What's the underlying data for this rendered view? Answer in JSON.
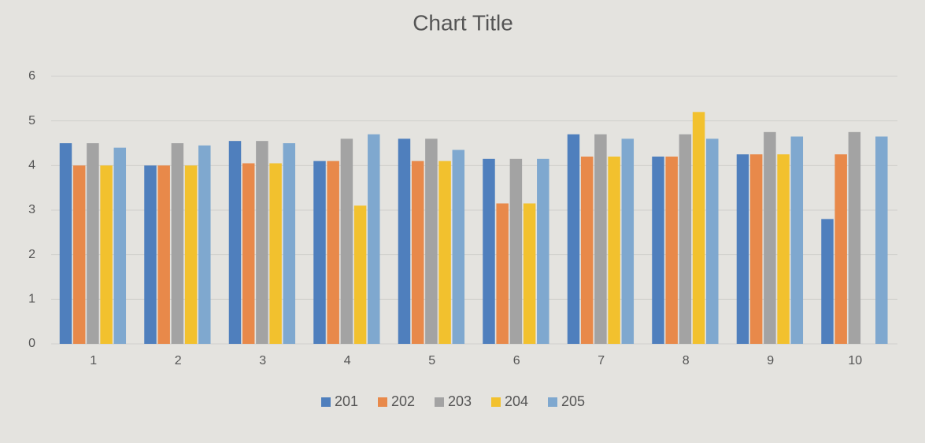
{
  "chart_data": {
    "type": "bar",
    "title": "Chart Title",
    "categories": [
      "1",
      "2",
      "3",
      "4",
      "5",
      "6",
      "7",
      "8",
      "9",
      "10"
    ],
    "series": [
      {
        "name": "201",
        "color": "#4f7fbd",
        "values": [
          4.5,
          4.0,
          4.55,
          4.1,
          4.6,
          4.15,
          4.7,
          4.2,
          4.25,
          2.8
        ]
      },
      {
        "name": "202",
        "color": "#e8894a",
        "values": [
          4.0,
          4.0,
          4.05,
          4.1,
          4.1,
          3.15,
          4.2,
          4.2,
          4.25,
          4.25
        ]
      },
      {
        "name": "203",
        "color": "#a3a3a3",
        "values": [
          4.5,
          4.5,
          4.55,
          4.6,
          4.6,
          4.15,
          4.7,
          4.7,
          4.75,
          4.75
        ]
      },
      {
        "name": "204",
        "color": "#f2c12e",
        "values": [
          4.0,
          4.0,
          4.05,
          3.1,
          4.1,
          3.15,
          4.2,
          5.2,
          4.25,
          null
        ]
      },
      {
        "name": "205",
        "color": "#7fa8cf",
        "values": [
          4.4,
          4.45,
          4.5,
          4.7,
          4.35,
          4.15,
          4.6,
          4.6,
          4.65,
          4.65
        ]
      }
    ],
    "ylim": [
      0,
      6
    ],
    "yticks": [
      0,
      1,
      2,
      3,
      4,
      5,
      6
    ],
    "grid": true,
    "legend": "bottom"
  }
}
